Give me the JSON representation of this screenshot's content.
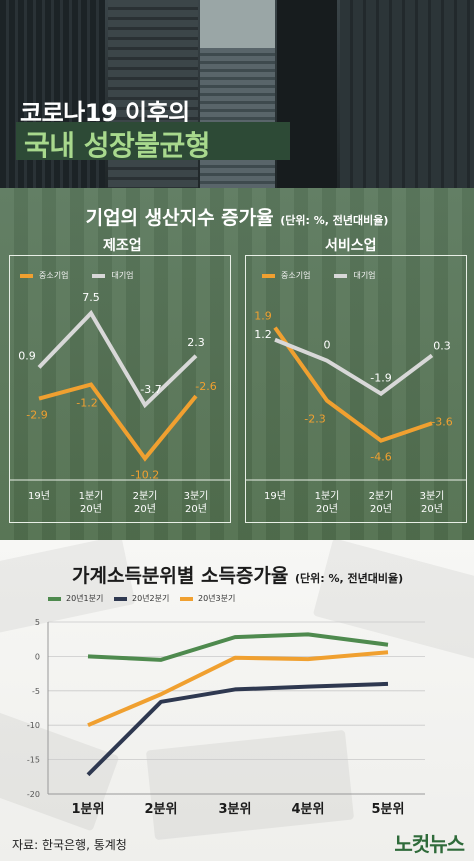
{
  "header": {
    "title_line1": "코로나19 이후의",
    "title_line2": "국내 성장불균형"
  },
  "section1": {
    "title": "기업의 생산지수 증가율",
    "unit": "(단위: %, 전년대비율)"
  },
  "section2": {
    "title": "가계소득분위별 소득증가율",
    "unit": "(단위: %, 전년대비율)"
  },
  "footer": {
    "source": "자료: 한국은행, 통계청",
    "brand": "노컷뉴스"
  },
  "colors": {
    "orange": "#f0a030",
    "lightgray": "#d8d8d8",
    "green": "#4e8a4e",
    "navy": "#2e3850",
    "bg_green": "#56735a"
  },
  "chart_data": [
    {
      "type": "line",
      "title": "제조업",
      "categories": [
        "19년",
        "1분기\n20년",
        "2분기\n20년",
        "3분기\n20년"
      ],
      "series": [
        {
          "name": "중소기업",
          "color": "#f0a030",
          "values": [
            -2.9,
            -1.2,
            -10.2,
            -2.6
          ],
          "labels": [
            "-2.9",
            "-1.2",
            "-10.2",
            "-2.6"
          ]
        },
        {
          "name": "대기업",
          "color": "#d8d8d8",
          "values": [
            0.9,
            7.5,
            -3.7,
            2.3
          ],
          "labels": [
            "0.9",
            "7.5",
            "-3.7",
            "2.3"
          ]
        }
      ]
    },
    {
      "type": "line",
      "title": "서비스업",
      "categories": [
        "19년",
        "1분기\n20년",
        "2분기\n20년",
        "3분기\n20년"
      ],
      "series": [
        {
          "name": "중소기업",
          "color": "#f0a030",
          "values": [
            1.9,
            -2.3,
            -4.6,
            -3.6
          ],
          "labels": [
            "1.9",
            "-2.3",
            "-4.6",
            "-3.6"
          ]
        },
        {
          "name": "대기업",
          "color": "#d8d8d8",
          "values": [
            1.2,
            0,
            -1.9,
            0.3
          ],
          "labels": [
            "1.2",
            "0",
            "-1.9",
            "0.3"
          ]
        }
      ]
    },
    {
      "type": "line",
      "title": "가계소득분위별 소득증가율",
      "categories": [
        "1분위",
        "2분위",
        "3분위",
        "4분위",
        "5분위"
      ],
      "ylim": [
        -20,
        5
      ],
      "yticks": [
        "5",
        "0",
        "-5",
        "-10",
        "-15",
        "-20"
      ],
      "grid": true,
      "series": [
        {
          "name": "20년1분기",
          "color": "#4e8a4e",
          "values": [
            0,
            -0.5,
            2.8,
            3.2,
            1.7
          ]
        },
        {
          "name": "20년2분기",
          "color": "#2e3850",
          "values": [
            -17.2,
            -6.6,
            -4.8,
            -4.4,
            -4.0
          ]
        },
        {
          "name": "20년3분기",
          "color": "#f0a030",
          "values": [
            -10.0,
            -5.5,
            -0.2,
            -0.4,
            0.6
          ]
        }
      ]
    }
  ]
}
